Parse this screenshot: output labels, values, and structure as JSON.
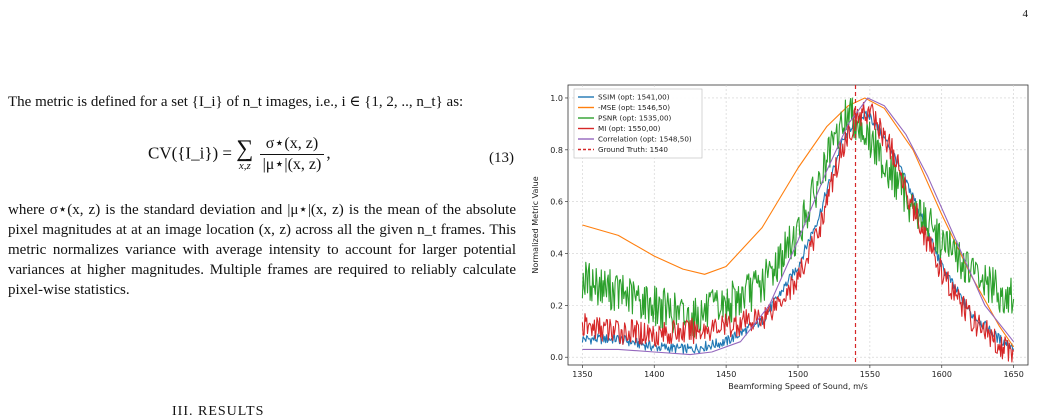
{
  "page_number": "4",
  "text": {
    "intro": "The metric is defined for a set {I_i} of n_t images, i.e., i ∈ {1, 2, .., n_t} as:",
    "equation": {
      "lhs": "CV({I_i}) =",
      "sum_sym": "∑",
      "sum_sub": "x,z",
      "numerator": "σ⋆(x, z)",
      "denominator": "|μ⋆|(x, z)",
      "tail": ",",
      "number": "(13)"
    },
    "body": "where σ⋆(x, z) is the standard deviation and |μ⋆|(x, z) is the mean of the absolute pixel magnitudes at at an image location (x, z) across all the given n_t frames. This metric normalizes variance with average intensity to account for larger potential variances at higher magnitudes. Multiple frames are required to reliably calculate pixel-wise statistics.",
    "section_heading": "III. RESULTS"
  },
  "chart_data": {
    "type": "line",
    "xlabel": "Beamforming Speed of Sound, m/s",
    "ylabel": "Normalized Metric Value",
    "xlim": [
      1340,
      1660
    ],
    "ylim": [
      -0.03,
      1.05
    ],
    "xticks": [
      "1350",
      "1400",
      "1450",
      "1500",
      "1550",
      "1600",
      "1650"
    ],
    "yticks": [
      "0.0",
      "0.2",
      "0.4",
      "0.6",
      "0.8",
      "1.0"
    ],
    "grid": true,
    "legend_position": "top-left",
    "series": [
      {
        "name": "SSIM (opt: 1541,00)",
        "color": "#1f77b4",
        "x": [
          1350,
          1375,
          1400,
          1425,
          1450,
          1475,
          1500,
          1515,
          1530,
          1541,
          1550,
          1565,
          1580,
          1600,
          1620,
          1640,
          1650
        ],
        "y": [
          0.07,
          0.07,
          0.04,
          0.03,
          0.06,
          0.14,
          0.35,
          0.55,
          0.82,
          0.93,
          0.93,
          0.8,
          0.62,
          0.35,
          0.17,
          0.07,
          0.04
        ]
      },
      {
        "name": "-MSE (opt: 1546,50)",
        "color": "#ff7f0e",
        "x": [
          1350,
          1375,
          1400,
          1420,
          1435,
          1450,
          1475,
          1500,
          1520,
          1535,
          1546.5,
          1560,
          1580,
          1600,
          1620,
          1640,
          1650
        ],
        "y": [
          0.51,
          0.47,
          0.39,
          0.34,
          0.32,
          0.35,
          0.5,
          0.73,
          0.89,
          0.97,
          1.0,
          0.96,
          0.8,
          0.55,
          0.32,
          0.12,
          0.04
        ]
      },
      {
        "name": "PSNR (opt: 1535,00)",
        "color": "#2ca02c",
        "x": [
          1350,
          1375,
          1400,
          1425,
          1450,
          1475,
          1500,
          1515,
          1525,
          1535,
          1545,
          1560,
          1580,
          1600,
          1620,
          1640,
          1650
        ],
        "y": [
          0.3,
          0.25,
          0.2,
          0.15,
          0.2,
          0.28,
          0.48,
          0.68,
          0.82,
          0.95,
          0.88,
          0.75,
          0.58,
          0.45,
          0.33,
          0.25,
          0.22
        ]
      },
      {
        "name": "MI (opt: 1550,00)",
        "color": "#d62728",
        "x": [
          1350,
          1375,
          1400,
          1425,
          1450,
          1475,
          1500,
          1515,
          1530,
          1540,
          1550,
          1565,
          1580,
          1600,
          1620,
          1640,
          1650
        ],
        "y": [
          0.12,
          0.1,
          0.09,
          0.1,
          0.12,
          0.15,
          0.3,
          0.5,
          0.8,
          0.92,
          0.95,
          0.8,
          0.58,
          0.32,
          0.15,
          0.05,
          0.02
        ]
      },
      {
        "name": "Correlation (opt: 1548,50)",
        "color": "#9467bd",
        "x": [
          1350,
          1375,
          1400,
          1425,
          1440,
          1460,
          1480,
          1500,
          1520,
          1535,
          1548.5,
          1560,
          1575,
          1590,
          1610,
          1630,
          1650
        ],
        "y": [
          0.03,
          0.03,
          0.02,
          0.01,
          0.02,
          0.06,
          0.2,
          0.45,
          0.72,
          0.9,
          1.0,
          0.97,
          0.86,
          0.7,
          0.45,
          0.2,
          0.06
        ]
      }
    ],
    "reference_line": {
      "name": "Ground Truth: 1540",
      "x": 1540,
      "color": "#d62728"
    }
  }
}
